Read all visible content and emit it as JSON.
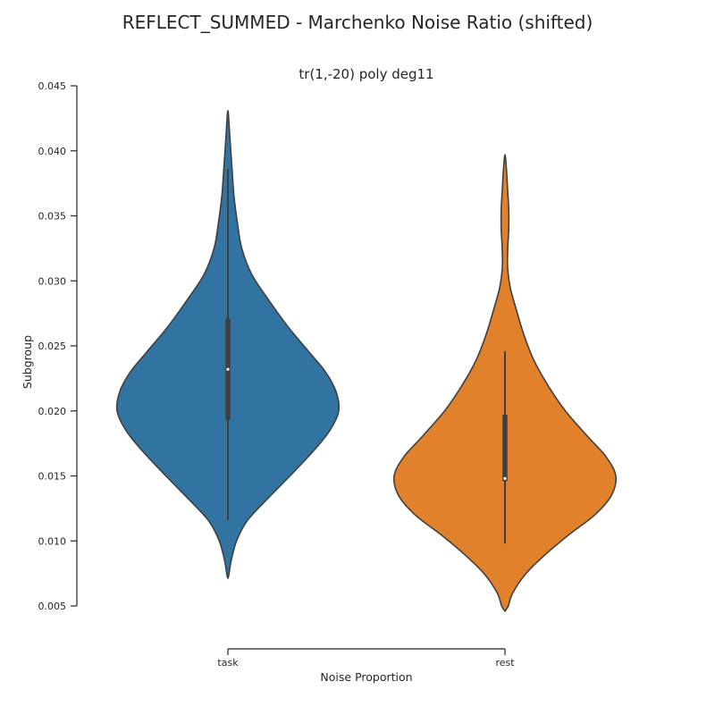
{
  "chart_data": {
    "type": "violin",
    "suptitle": "REFLECT_SUMMED - Marchenko Noise Ratio (shifted)",
    "title": "tr(1,-20) poly deg11",
    "xlabel": "Noise Proportion",
    "ylabel": "Subgroup",
    "ylim": [
      0.005,
      0.045
    ],
    "yticks": [
      0.005,
      0.01,
      0.015,
      0.02,
      0.025,
      0.03,
      0.035,
      0.04,
      0.045
    ],
    "ytick_labels": [
      "0.005",
      "0.010",
      "0.015",
      "0.020",
      "0.025",
      "0.030",
      "0.035",
      "0.040",
      "0.045"
    ],
    "categories": [
      "task",
      "rest"
    ],
    "grid": false,
    "series": [
      {
        "category": "task",
        "color": "#3274a1",
        "whisker_low": 0.0116,
        "q1": 0.0193,
        "median": 0.0232,
        "q3": 0.0271,
        "whisker_high": 0.0386,
        "density": [
          [
            0.0071,
            0.0
          ],
          [
            0.0075,
            0.011
          ],
          [
            0.0085,
            0.03
          ],
          [
            0.01,
            0.078
          ],
          [
            0.0115,
            0.17
          ],
          [
            0.013,
            0.33
          ],
          [
            0.015,
            0.56
          ],
          [
            0.017,
            0.78
          ],
          [
            0.0185,
            0.92
          ],
          [
            0.02,
            1.0
          ],
          [
            0.0215,
            0.975
          ],
          [
            0.023,
            0.88
          ],
          [
            0.0245,
            0.735
          ],
          [
            0.0265,
            0.54
          ],
          [
            0.0285,
            0.37
          ],
          [
            0.0305,
            0.215
          ],
          [
            0.0325,
            0.125
          ],
          [
            0.0345,
            0.085
          ],
          [
            0.0365,
            0.055
          ],
          [
            0.0385,
            0.038
          ],
          [
            0.0405,
            0.022
          ],
          [
            0.042,
            0.011
          ],
          [
            0.0431,
            0.0
          ]
        ]
      },
      {
        "category": "rest",
        "color": "#e1812c",
        "whisker_low": 0.0098,
        "q1": 0.0146,
        "median": 0.0148,
        "q3": 0.0197,
        "whisker_high": 0.0246,
        "density": [
          [
            0.0046,
            0.0
          ],
          [
            0.005,
            0.03
          ],
          [
            0.006,
            0.07
          ],
          [
            0.0075,
            0.19
          ],
          [
            0.009,
            0.37
          ],
          [
            0.0105,
            0.58
          ],
          [
            0.012,
            0.81
          ],
          [
            0.0135,
            0.96
          ],
          [
            0.015,
            1.0
          ],
          [
            0.0165,
            0.91
          ],
          [
            0.018,
            0.75
          ],
          [
            0.02,
            0.545
          ],
          [
            0.022,
            0.385
          ],
          [
            0.024,
            0.255
          ],
          [
            0.026,
            0.165
          ],
          [
            0.028,
            0.095
          ],
          [
            0.0295,
            0.047
          ],
          [
            0.031,
            0.024
          ],
          [
            0.0325,
            0.025
          ],
          [
            0.034,
            0.034
          ],
          [
            0.0355,
            0.034
          ],
          [
            0.037,
            0.024
          ],
          [
            0.0385,
            0.014
          ],
          [
            0.0397,
            0.0
          ]
        ]
      }
    ]
  }
}
